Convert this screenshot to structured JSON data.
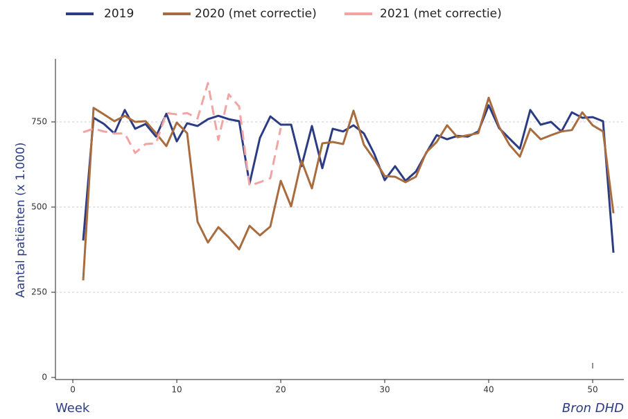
{
  "chart_data": {
    "type": "line",
    "y_label": "Aantal patiënten (x 1.000)",
    "x_label": "Week",
    "source": "Bron DHD",
    "x": [
      1,
      2,
      3,
      4,
      5,
      6,
      7,
      8,
      9,
      10,
      11,
      12,
      13,
      14,
      15,
      16,
      17,
      18,
      19,
      20,
      21,
      22,
      23,
      24,
      25,
      26,
      27,
      28,
      29,
      30,
      31,
      32,
      33,
      34,
      35,
      36,
      37,
      38,
      39,
      40,
      41,
      42,
      43,
      44,
      45,
      46,
      47,
      48,
      49,
      50,
      51,
      52
    ],
    "series": [
      {
        "name": "2019",
        "color": "#2c3c84",
        "dash": false,
        "values": [
          402,
          762,
          744,
          716,
          785,
          730,
          744,
          707,
          774,
          693,
          746,
          738,
          758,
          768,
          758,
          752,
          569,
          703,
          766,
          742,
          742,
          620,
          738,
          614,
          730,
          722,
          740,
          716,
          656,
          579,
          620,
          577,
          604,
          659,
          711,
          699,
          709,
          707,
          722,
          799,
          732,
          701,
          671,
          785,
          742,
          750,
          722,
          778,
          762,
          764,
          752,
          366
        ]
      },
      {
        "name": "2020 (met correctie)",
        "color": "#a86c3e",
        "dash": false,
        "values": [
          285,
          791,
          772,
          752,
          768,
          750,
          752,
          717,
          679,
          748,
          717,
          457,
          396,
          441,
          411,
          376,
          445,
          417,
          443,
          577,
          502,
          636,
          555,
          687,
          691,
          685,
          783,
          683,
          640,
          591,
          589,
          573,
          589,
          661,
          691,
          740,
          705,
          711,
          717,
          821,
          736,
          683,
          648,
          730,
          699,
          711,
          722,
          726,
          778,
          740,
          722,
          482
        ]
      },
      {
        "name": "2021 (met correctie)",
        "color": "#f2a4a2",
        "dash": true,
        "values": [
          720,
          730,
          722,
          716,
          716,
          659,
          685,
          687,
          776,
          772,
          776,
          760,
          864,
          697,
          831,
          795,
          563,
          573,
          585,
          732,
          null,
          null,
          null,
          null,
          null,
          null,
          null,
          null,
          null,
          null,
          null,
          null,
          null,
          null,
          null,
          null,
          null,
          null,
          null,
          null,
          null,
          null,
          null,
          null,
          null,
          null,
          null,
          null,
          null,
          null,
          null,
          null
        ]
      }
    ],
    "xlim": [
      -1.67,
      53
    ],
    "xticks": [
      0,
      10,
      20,
      30,
      40,
      50
    ],
    "ylim": [
      0,
      935
    ],
    "yticks": [
      0,
      250,
      500,
      750
    ],
    "grid": true,
    "legend": "top"
  }
}
